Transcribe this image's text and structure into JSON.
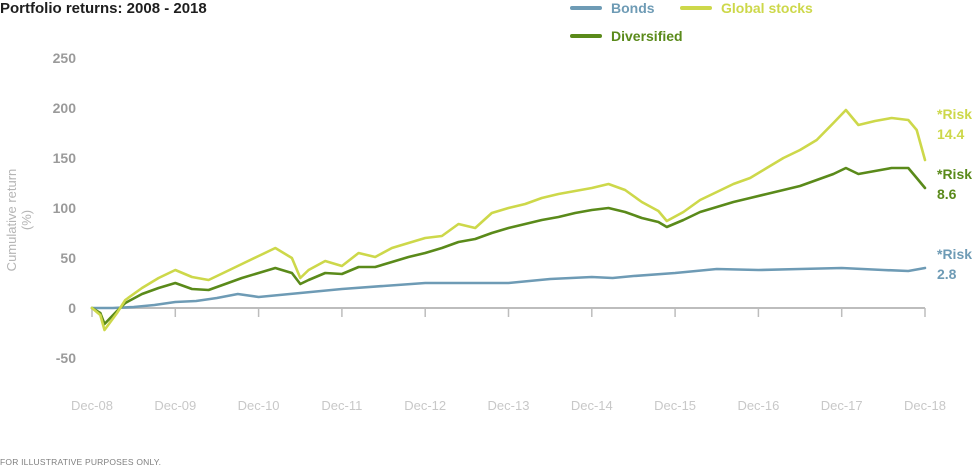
{
  "title": "Portfolio returns: 2008 - 2018",
  "footnote": "FOR ILLUSTRATIVE PURPOSES ONLY.",
  "colors": {
    "bonds": "#6e9bb5",
    "global": "#cdd84a",
    "diversified": "#5a8a1a",
    "axis": "#bdbdbd",
    "tick": "#9a9a9a"
  },
  "chart_data": {
    "type": "line",
    "title": "Portfolio returns: 2008 - 2018",
    "xlabel": "",
    "ylabel": "Cumulative return (%)",
    "x_ticks": [
      "Dec-08",
      "Dec-09",
      "Dec-10",
      "Dec-11",
      "Dec-12",
      "Dec-13",
      "Dec-14",
      "Dec-15",
      "Dec-16",
      "Dec-17",
      "Dec-18"
    ],
    "y_ticks": [
      -50,
      0,
      50,
      100,
      150,
      200,
      250
    ],
    "ylim": [
      -50,
      250
    ],
    "xlim": [
      0,
      10
    ],
    "grid": false,
    "legend_position": "top-right",
    "series": [
      {
        "name": "Bonds",
        "color": "#6e9bb5",
        "risk_label": "*Risk",
        "risk_value": "2.8",
        "points": [
          [
            0,
            0
          ],
          [
            0.25,
            0
          ],
          [
            0.5,
            1
          ],
          [
            0.75,
            3
          ],
          [
            1.0,
            6
          ],
          [
            1.25,
            7
          ],
          [
            1.5,
            10
          ],
          [
            1.75,
            14
          ],
          [
            2.0,
            11
          ],
          [
            2.5,
            15
          ],
          [
            3.0,
            19
          ],
          [
            3.5,
            22
          ],
          [
            4.0,
            25
          ],
          [
            4.5,
            25
          ],
          [
            5.0,
            25
          ],
          [
            5.25,
            27
          ],
          [
            5.5,
            29
          ],
          [
            6.0,
            31
          ],
          [
            6.25,
            30
          ],
          [
            6.5,
            32
          ],
          [
            7.0,
            35
          ],
          [
            7.5,
            39
          ],
          [
            8.0,
            38
          ],
          [
            8.5,
            39
          ],
          [
            9.0,
            40
          ],
          [
            9.5,
            38
          ],
          [
            9.8,
            37
          ],
          [
            10.0,
            40
          ]
        ]
      },
      {
        "name": "Global stocks",
        "color": "#cdd84a",
        "risk_label": "*Risk",
        "risk_value": "14.4",
        "points": [
          [
            0,
            0
          ],
          [
            0.1,
            -7
          ],
          [
            0.15,
            -22
          ],
          [
            0.3,
            -5
          ],
          [
            0.4,
            8
          ],
          [
            0.6,
            20
          ],
          [
            0.8,
            30
          ],
          [
            1.0,
            38
          ],
          [
            1.2,
            31
          ],
          [
            1.4,
            28
          ],
          [
            1.6,
            36
          ],
          [
            1.8,
            44
          ],
          [
            2.0,
            52
          ],
          [
            2.2,
            60
          ],
          [
            2.4,
            50
          ],
          [
            2.5,
            30
          ],
          [
            2.6,
            38
          ],
          [
            2.8,
            47
          ],
          [
            3.0,
            42
          ],
          [
            3.2,
            55
          ],
          [
            3.4,
            51
          ],
          [
            3.6,
            60
          ],
          [
            3.8,
            65
          ],
          [
            4.0,
            70
          ],
          [
            4.2,
            72
          ],
          [
            4.4,
            84
          ],
          [
            4.6,
            80
          ],
          [
            4.8,
            95
          ],
          [
            5.0,
            100
          ],
          [
            5.2,
            104
          ],
          [
            5.4,
            110
          ],
          [
            5.6,
            114
          ],
          [
            5.8,
            117
          ],
          [
            6.0,
            120
          ],
          [
            6.2,
            124
          ],
          [
            6.4,
            118
          ],
          [
            6.6,
            106
          ],
          [
            6.8,
            97
          ],
          [
            6.9,
            87
          ],
          [
            7.1,
            96
          ],
          [
            7.3,
            108
          ],
          [
            7.5,
            116
          ],
          [
            7.7,
            124
          ],
          [
            7.9,
            130
          ],
          [
            8.1,
            140
          ],
          [
            8.3,
            150
          ],
          [
            8.5,
            158
          ],
          [
            8.7,
            168
          ],
          [
            8.9,
            185
          ],
          [
            9.05,
            198
          ],
          [
            9.2,
            183
          ],
          [
            9.4,
            187
          ],
          [
            9.6,
            190
          ],
          [
            9.8,
            188
          ],
          [
            9.9,
            178
          ],
          [
            10.0,
            148
          ]
        ]
      },
      {
        "name": "Diversified",
        "color": "#5a8a1a",
        "risk_label": "*Risk",
        "risk_value": "8.6",
        "points": [
          [
            0,
            0
          ],
          [
            0.1,
            -5
          ],
          [
            0.15,
            -16
          ],
          [
            0.3,
            -3
          ],
          [
            0.4,
            5
          ],
          [
            0.6,
            14
          ],
          [
            0.8,
            20
          ],
          [
            1.0,
            25
          ],
          [
            1.2,
            19
          ],
          [
            1.4,
            18
          ],
          [
            1.6,
            24
          ],
          [
            1.8,
            30
          ],
          [
            2.0,
            35
          ],
          [
            2.2,
            40
          ],
          [
            2.4,
            35
          ],
          [
            2.5,
            24
          ],
          [
            2.6,
            28
          ],
          [
            2.8,
            35
          ],
          [
            3.0,
            34
          ],
          [
            3.2,
            41
          ],
          [
            3.4,
            41
          ],
          [
            3.6,
            46
          ],
          [
            3.8,
            51
          ],
          [
            4.0,
            55
          ],
          [
            4.2,
            60
          ],
          [
            4.4,
            66
          ],
          [
            4.6,
            69
          ],
          [
            4.8,
            75
          ],
          [
            5.0,
            80
          ],
          [
            5.2,
            84
          ],
          [
            5.4,
            88
          ],
          [
            5.6,
            91
          ],
          [
            5.8,
            95
          ],
          [
            6.0,
            98
          ],
          [
            6.2,
            100
          ],
          [
            6.4,
            96
          ],
          [
            6.6,
            90
          ],
          [
            6.8,
            86
          ],
          [
            6.9,
            81
          ],
          [
            7.1,
            88
          ],
          [
            7.3,
            96
          ],
          [
            7.5,
            101
          ],
          [
            7.7,
            106
          ],
          [
            7.9,
            110
          ],
          [
            8.1,
            114
          ],
          [
            8.3,
            118
          ],
          [
            8.5,
            122
          ],
          [
            8.7,
            128
          ],
          [
            8.9,
            134
          ],
          [
            9.05,
            140
          ],
          [
            9.2,
            134
          ],
          [
            9.4,
            137
          ],
          [
            9.6,
            140
          ],
          [
            9.8,
            140
          ],
          [
            9.9,
            130
          ],
          [
            10.0,
            120
          ]
        ]
      }
    ]
  }
}
